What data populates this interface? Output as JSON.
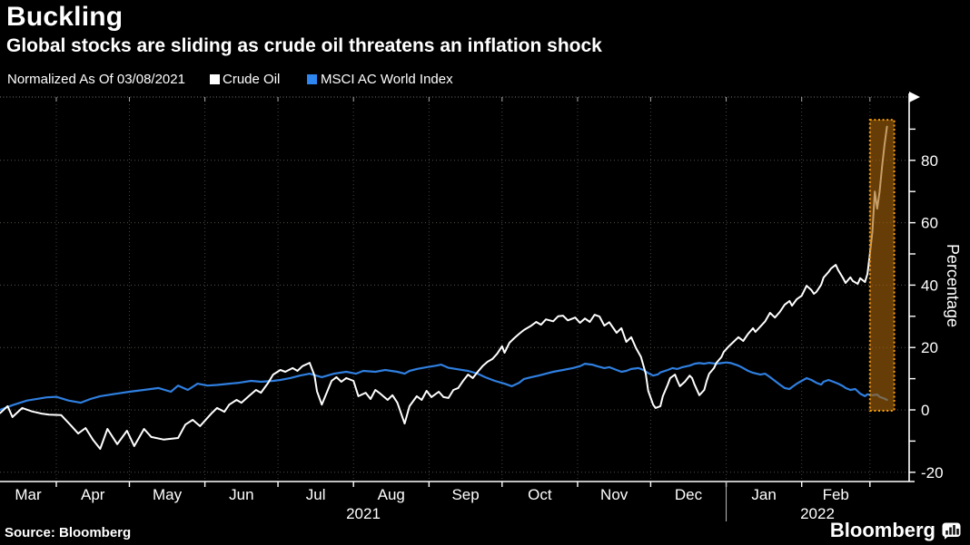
{
  "header": {
    "title": "Buckling",
    "subtitle": "Global stocks are sliding as crude oil threatens an inflation shock"
  },
  "legend": {
    "note": "Normalized As Of 03/08/2021",
    "series": [
      {
        "label": "Crude Oil",
        "color": "#ffffff"
      },
      {
        "label": "MSCI AC World Index",
        "color": "#2e86f0"
      }
    ]
  },
  "footer": {
    "source": "Source: Bloomberg",
    "brand": "Bloomberg"
  },
  "colors": {
    "background": "#000000",
    "text": "#ffffff",
    "grid_h": "#55504a",
    "grid_v": "#454545",
    "axis": "#ffffff",
    "crude_line": "#ffffff",
    "msci_line": "#2f7fe0",
    "band_fill": "#a56309",
    "band_border": "#f59b0b"
  },
  "chart_data": {
    "type": "line",
    "title": "Buckling",
    "subtitle": "Global stocks are sliding as crude oil threatens an inflation shock",
    "x_unit": "days since 2021-03-08 (normalization date)",
    "grid": true,
    "legend_position": "top",
    "x_axis": {
      "months": [
        "Mar",
        "Apr",
        "May",
        "Jun",
        "Jul",
        "Aug",
        "Sep",
        "Oct",
        "Nov",
        "Dec",
        "Jan",
        "Feb"
      ],
      "year_labels": [
        "2021",
        "2022"
      ]
    },
    "y_axis": {
      "label": "Percentage",
      "major_ticks": [
        -20,
        0,
        20,
        40,
        60,
        80
      ],
      "minor_step": 10,
      "range": [
        -23,
        100
      ]
    },
    "highlight_band": {
      "x_start_day": 358,
      "x_end_day": 368,
      "y_min": -0.3,
      "y_max": 93
    },
    "series": [
      {
        "name": "Crude Oil",
        "color": "#ffffff",
        "points": [
          [
            1,
            -1
          ],
          [
            4,
            1.2
          ],
          [
            6,
            -2.3
          ],
          [
            10,
            0.6
          ],
          [
            14,
            -0.5
          ],
          [
            18,
            -1.2
          ],
          [
            21,
            -1.5
          ],
          [
            26,
            -1.7
          ],
          [
            30,
            -5
          ],
          [
            33,
            -7.6
          ],
          [
            36,
            -5.8
          ],
          [
            39,
            -9.5
          ],
          [
            42,
            -12.5
          ],
          [
            45,
            -6.1
          ],
          [
            49,
            -11
          ],
          [
            53,
            -6.7
          ],
          [
            56,
            -11.6
          ],
          [
            60,
            -6.1
          ],
          [
            63,
            -8.7
          ],
          [
            68,
            -9.5
          ],
          [
            74,
            -9
          ],
          [
            77,
            -4.7
          ],
          [
            80,
            -3.2
          ],
          [
            83,
            -5.2
          ],
          [
            88,
            -0.9
          ],
          [
            90,
            0.6
          ],
          [
            93,
            -0.6
          ],
          [
            95,
            1.7
          ],
          [
            98,
            3.2
          ],
          [
            100,
            2.3
          ],
          [
            103,
            4.4
          ],
          [
            106,
            6.4
          ],
          [
            108,
            5.5
          ],
          [
            111,
            8.7
          ],
          [
            113,
            11.3
          ],
          [
            116,
            12.8
          ],
          [
            118,
            12.2
          ],
          [
            121,
            13.4
          ],
          [
            123,
            12.5
          ],
          [
            125,
            14
          ],
          [
            128,
            15.1
          ],
          [
            130,
            11
          ],
          [
            131,
            6
          ],
          [
            133,
            1.7
          ],
          [
            135,
            5.5
          ],
          [
            137,
            9.3
          ],
          [
            139,
            10.5
          ],
          [
            141,
            9
          ],
          [
            143,
            10.2
          ],
          [
            146,
            9.3
          ],
          [
            148,
            4.4
          ],
          [
            151,
            5.5
          ],
          [
            153,
            3.5
          ],
          [
            155,
            6.4
          ],
          [
            157,
            5.2
          ],
          [
            160,
            3.2
          ],
          [
            162,
            4.7
          ],
          [
            164,
            2.3
          ],
          [
            167,
            -4.4
          ],
          [
            169,
            1.2
          ],
          [
            172,
            4.4
          ],
          [
            174,
            3.2
          ],
          [
            176,
            6.1
          ],
          [
            178,
            4.1
          ],
          [
            181,
            5.8
          ],
          [
            183,
            4.1
          ],
          [
            185,
            3.8
          ],
          [
            187,
            6.4
          ],
          [
            189,
            7
          ],
          [
            191,
            9.3
          ],
          [
            193,
            11.3
          ],
          [
            195,
            10.2
          ],
          [
            197,
            12.2
          ],
          [
            199,
            14
          ],
          [
            201,
            15.4
          ],
          [
            203,
            16.3
          ],
          [
            205,
            18
          ],
          [
            207,
            20.4
          ],
          [
            208,
            18.3
          ],
          [
            210,
            21.5
          ],
          [
            212,
            23
          ],
          [
            214,
            24.4
          ],
          [
            216,
            25.6
          ],
          [
            219,
            27
          ],
          [
            221,
            28.2
          ],
          [
            223,
            27.3
          ],
          [
            225,
            29
          ],
          [
            228,
            28.4
          ],
          [
            230,
            30
          ],
          [
            232,
            30.2
          ],
          [
            234,
            28.7
          ],
          [
            237,
            29.6
          ],
          [
            239,
            27.9
          ],
          [
            241,
            29.3
          ],
          [
            243,
            28.2
          ],
          [
            245,
            30.5
          ],
          [
            247,
            29.9
          ],
          [
            249,
            27
          ],
          [
            251,
            28.1
          ],
          [
            254,
            24.7
          ],
          [
            256,
            26.2
          ],
          [
            258,
            21.8
          ],
          [
            260,
            23.3
          ],
          [
            262,
            19.8
          ],
          [
            264,
            17
          ],
          [
            266,
            11.6
          ],
          [
            267,
            6.1
          ],
          [
            269,
            1.7
          ],
          [
            270,
            0.6
          ],
          [
            272,
            1.2
          ],
          [
            273,
            4.4
          ],
          [
            275,
            8.1
          ],
          [
            276,
            10.2
          ],
          [
            278,
            11.3
          ],
          [
            279,
            9.3
          ],
          [
            280,
            7.6
          ],
          [
            282,
            9
          ],
          [
            284,
            11
          ],
          [
            285,
            10.2
          ],
          [
            286,
            8.1
          ],
          [
            288,
            4.7
          ],
          [
            290,
            6.4
          ],
          [
            291,
            9.3
          ],
          [
            292,
            11.6
          ],
          [
            294,
            13.4
          ],
          [
            295,
            15.1
          ],
          [
            297,
            16.9
          ],
          [
            298,
            18.6
          ],
          [
            300,
            20.3
          ],
          [
            302,
            21.8
          ],
          [
            304,
            23.3
          ],
          [
            306,
            22.1
          ],
          [
            308,
            24.4
          ],
          [
            310,
            26.2
          ],
          [
            311,
            25
          ],
          [
            313,
            26.7
          ],
          [
            315,
            28.4
          ],
          [
            317,
            31.1
          ],
          [
            319,
            29.6
          ],
          [
            321,
            31.4
          ],
          [
            323,
            33.7
          ],
          [
            325,
            34.9
          ],
          [
            326,
            33.4
          ],
          [
            328,
            35.5
          ],
          [
            330,
            36.6
          ],
          [
            332,
            39.8
          ],
          [
            334,
            38.4
          ],
          [
            335,
            37.2
          ],
          [
            336,
            37.8
          ],
          [
            338,
            40.1
          ],
          [
            339,
            42.4
          ],
          [
            341,
            44.2
          ],
          [
            342,
            45.3
          ],
          [
            344,
            46.5
          ],
          [
            345,
            44.8
          ],
          [
            347,
            42.2
          ],
          [
            348,
            40.7
          ],
          [
            350,
            42.5
          ],
          [
            351,
            41.3
          ],
          [
            353,
            40.4
          ],
          [
            354,
            42.2
          ],
          [
            356,
            41
          ],
          [
            357,
            43.6
          ],
          [
            358,
            50
          ],
          [
            359,
            57
          ],
          [
            360,
            70
          ],
          [
            361,
            64.5
          ],
          [
            362,
            70
          ],
          [
            363,
            78
          ],
          [
            364,
            85
          ],
          [
            365,
            90.8
          ]
        ]
      },
      {
        "name": "MSCI AC World Index",
        "color": "#2f7fe0",
        "points": [
          [
            1,
            0
          ],
          [
            6,
            1.5
          ],
          [
            12,
            3
          ],
          [
            20,
            4
          ],
          [
            24,
            4.2
          ],
          [
            29,
            3
          ],
          [
            34,
            2.3
          ],
          [
            38,
            3.5
          ],
          [
            42,
            4.4
          ],
          [
            47,
            5
          ],
          [
            54,
            5.8
          ],
          [
            61,
            6.5
          ],
          [
            66,
            7
          ],
          [
            71,
            5.8
          ],
          [
            74,
            7.8
          ],
          [
            78,
            6.4
          ],
          [
            82,
            8.4
          ],
          [
            86,
            7.8
          ],
          [
            90,
            8
          ],
          [
            95,
            8.4
          ],
          [
            99,
            8.7
          ],
          [
            104,
            9.3
          ],
          [
            108,
            9
          ],
          [
            113,
            9.3
          ],
          [
            116,
            9.6
          ],
          [
            120,
            10.2
          ],
          [
            124,
            11
          ],
          [
            128,
            11.6
          ],
          [
            133,
            10.5
          ],
          [
            138,
            11.6
          ],
          [
            143,
            12.2
          ],
          [
            147,
            11.6
          ],
          [
            150,
            12.5
          ],
          [
            155,
            12.2
          ],
          [
            159,
            12.8
          ],
          [
            164,
            12.2
          ],
          [
            167,
            11.6
          ],
          [
            169,
            12.5
          ],
          [
            172,
            13.1
          ],
          [
            176,
            13.7
          ],
          [
            180,
            14.2
          ],
          [
            182,
            14.5
          ],
          [
            185,
            13.5
          ],
          [
            189,
            13
          ],
          [
            193,
            12.5
          ],
          [
            197,
            11.6
          ],
          [
            200,
            10.5
          ],
          [
            204,
            9.3
          ],
          [
            208,
            8.4
          ],
          [
            211,
            7.6
          ],
          [
            214,
            8.7
          ],
          [
            216,
            9.9
          ],
          [
            219,
            10.5
          ],
          [
            222,
            11
          ],
          [
            225,
            11.6
          ],
          [
            228,
            12.2
          ],
          [
            232,
            12.8
          ],
          [
            236,
            13.4
          ],
          [
            239,
            14
          ],
          [
            241,
            14.8
          ],
          [
            244,
            14.5
          ],
          [
            246,
            14
          ],
          [
            249,
            13.4
          ],
          [
            251,
            13.7
          ],
          [
            254,
            12.8
          ],
          [
            256,
            12.2
          ],
          [
            258,
            12.5
          ],
          [
            260,
            13.1
          ],
          [
            263,
            13.4
          ],
          [
            265,
            12.8
          ],
          [
            267,
            11.8
          ],
          [
            269,
            11
          ],
          [
            271,
            11.4
          ],
          [
            272,
            12
          ],
          [
            275,
            12.8
          ],
          [
            277,
            13.4
          ],
          [
            279,
            13.1
          ],
          [
            281,
            13.7
          ],
          [
            284,
            14.2
          ],
          [
            286,
            14.8
          ],
          [
            288,
            15
          ],
          [
            290,
            14.8
          ],
          [
            292,
            15.1
          ],
          [
            295,
            14.8
          ],
          [
            297,
            15
          ],
          [
            299,
            15.2
          ],
          [
            301,
            15
          ],
          [
            304,
            14.2
          ],
          [
            306,
            13.4
          ],
          [
            308,
            12.5
          ],
          [
            310,
            11.9
          ],
          [
            313,
            11.3
          ],
          [
            315,
            11.6
          ],
          [
            317,
            10.5
          ],
          [
            319,
            9.3
          ],
          [
            321,
            8.1
          ],
          [
            323,
            7
          ],
          [
            325,
            6.7
          ],
          [
            326,
            7.3
          ],
          [
            328,
            8.4
          ],
          [
            330,
            9.3
          ],
          [
            332,
            10.2
          ],
          [
            334,
            9.6
          ],
          [
            336,
            8.7
          ],
          [
            338,
            8.1
          ],
          [
            339,
            9
          ],
          [
            341,
            9.6
          ],
          [
            343,
            9
          ],
          [
            345,
            8.4
          ],
          [
            347,
            7.6
          ],
          [
            348,
            7
          ],
          [
            350,
            6.4
          ],
          [
            352,
            6.7
          ],
          [
            354,
            5.2
          ],
          [
            356,
            4.4
          ],
          [
            357,
            5
          ],
          [
            359,
            4.7
          ],
          [
            361,
            4.9
          ],
          [
            362,
            4.2
          ],
          [
            364,
            3.6
          ],
          [
            365,
            3.2
          ]
        ]
      }
    ]
  }
}
